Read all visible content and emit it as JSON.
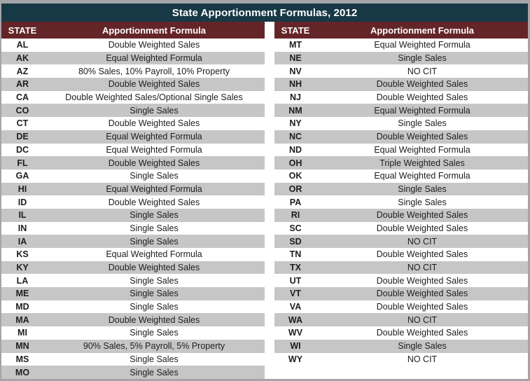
{
  "colors": {
    "title_bg": "#173845",
    "title_text": "#ffffff",
    "header_bg": "#642528",
    "header_text": "#ffffff",
    "row_alt": "#c6c6c6",
    "frame_border": "#a4a5a9",
    "text_dark": "#1d1d1f"
  },
  "chart_data": {
    "type": "table",
    "title": "State Apportionment Formulas, 2012",
    "column_headers": [
      "STATE",
      "Apportionment Formula"
    ],
    "left_table": {
      "rows": [
        {
          "state": "AL",
          "formula": "Double Weighted Sales"
        },
        {
          "state": "AK",
          "formula": "Equal Weighted Formula"
        },
        {
          "state": "AZ",
          "formula": "80% Sales, 10% Payroll, 10% Property"
        },
        {
          "state": "AR",
          "formula": "Double Weighted Sales"
        },
        {
          "state": "CA",
          "formula": "Double Weighted Sales/Optional Single Sales"
        },
        {
          "state": "CO",
          "formula": "Single Sales"
        },
        {
          "state": "CT",
          "formula": "Double Weighted Sales"
        },
        {
          "state": "DE",
          "formula": "Equal Weighted Formula"
        },
        {
          "state": "DC",
          "formula": "Equal Weighted Formula"
        },
        {
          "state": "FL",
          "formula": "Double Weighted Sales"
        },
        {
          "state": "GA",
          "formula": "Single Sales"
        },
        {
          "state": "HI",
          "formula": "Equal Weighted Formula"
        },
        {
          "state": "ID",
          "formula": "Double Weighted Sales"
        },
        {
          "state": "IL",
          "formula": "Single Sales"
        },
        {
          "state": "IN",
          "formula": "Single Sales"
        },
        {
          "state": "IA",
          "formula": "Single Sales"
        },
        {
          "state": "KS",
          "formula": "Equal Weighted Formula"
        },
        {
          "state": "KY",
          "formula": "Double Weighted Sales"
        },
        {
          "state": "LA",
          "formula": "Single Sales"
        },
        {
          "state": "ME",
          "formula": "Single Sales"
        },
        {
          "state": "MD",
          "formula": "Single Sales"
        },
        {
          "state": "MA",
          "formula": "Double Weighted Sales"
        },
        {
          "state": "MI",
          "formula": "Single Sales"
        },
        {
          "state": "MN",
          "formula": "90% Sales, 5% Payroll, 5% Property"
        },
        {
          "state": "MS",
          "formula": "Single Sales"
        },
        {
          "state": "MO",
          "formula": "Single Sales"
        }
      ]
    },
    "right_table": {
      "rows": [
        {
          "state": "MT",
          "formula": "Equal Weighted Formula"
        },
        {
          "state": "NE",
          "formula": "Single Sales"
        },
        {
          "state": "NV",
          "formula": "NO CIT"
        },
        {
          "state": "NH",
          "formula": "Double Weighted Sales"
        },
        {
          "state": "NJ",
          "formula": "Double Weighted Sales"
        },
        {
          "state": "NM",
          "formula": "Equal Weighted Formula"
        },
        {
          "state": "NY",
          "formula": "Single Sales"
        },
        {
          "state": "NC",
          "formula": "Double Weighted Sales"
        },
        {
          "state": "ND",
          "formula": "Equal Weighted Formula"
        },
        {
          "state": "OH",
          "formula": "Triple Weighted Sales"
        },
        {
          "state": "OK",
          "formula": "Equal Weighted Formula"
        },
        {
          "state": "OR",
          "formula": "Single Sales"
        },
        {
          "state": "PA",
          "formula": "Single Sales"
        },
        {
          "state": "RI",
          "formula": "Double Weighted Sales"
        },
        {
          "state": "SC",
          "formula": "Double Weighted Sales"
        },
        {
          "state": "SD",
          "formula": "NO CIT"
        },
        {
          "state": "TN",
          "formula": "Double Weighted Sales"
        },
        {
          "state": "TX",
          "formula": "NO CIT"
        },
        {
          "state": "UT",
          "formula": "Double Weighted Sales"
        },
        {
          "state": "VT",
          "formula": "Double Weighted Sales"
        },
        {
          "state": "VA",
          "formula": "Double Weighted Sales"
        },
        {
          "state": "WA",
          "formula": "NO CIT"
        },
        {
          "state": "WV",
          "formula": "Double Weighted Sales"
        },
        {
          "state": "WI",
          "formula": "Single Sales"
        },
        {
          "state": "WY",
          "formula": "NO CIT"
        }
      ]
    }
  }
}
